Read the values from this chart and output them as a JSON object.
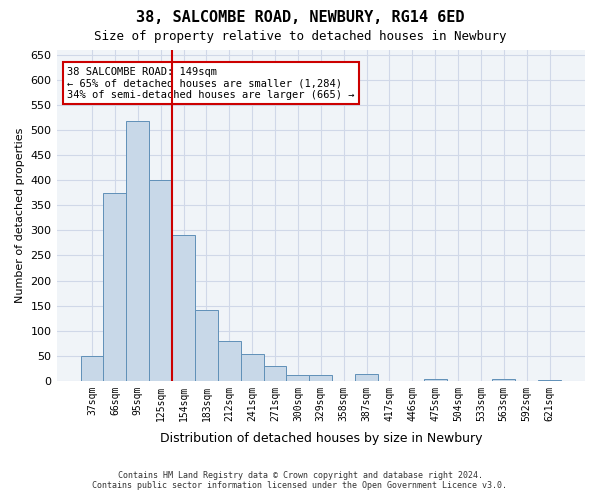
{
  "title1": "38, SALCOMBE ROAD, NEWBURY, RG14 6ED",
  "title2": "Size of property relative to detached houses in Newbury",
  "xlabel": "Distribution of detached houses by size in Newbury",
  "ylabel": "Number of detached properties",
  "categories": [
    "37sqm",
    "66sqm",
    "95sqm",
    "125sqm",
    "154sqm",
    "183sqm",
    "212sqm",
    "241sqm",
    "271sqm",
    "300sqm",
    "329sqm",
    "358sqm",
    "387sqm",
    "417sqm",
    "446sqm",
    "475sqm",
    "504sqm",
    "533sqm",
    "563sqm",
    "592sqm",
    "621sqm"
  ],
  "values": [
    50,
    375,
    519,
    401,
    291,
    142,
    80,
    54,
    29,
    11,
    11,
    0,
    13,
    0,
    0,
    3,
    0,
    0,
    3,
    0,
    2
  ],
  "bar_color": "#c8d8e8",
  "bar_edge_color": "#6090b8",
  "property_sqm": 149,
  "property_label": "38 SALCOMBE ROAD: 149sqm",
  "annotation_line1": "← 65% of detached houses are smaller (1,284)",
  "annotation_line2": "34% of semi-detached houses are larger (665) →",
  "vline_color": "#cc0000",
  "vline_x_index": 3.5,
  "box_color": "#cc0000",
  "grid_color": "#d0d8e8",
  "background_color": "#f0f4f8",
  "footnote1": "Contains HM Land Registry data © Crown copyright and database right 2024.",
  "footnote2": "Contains public sector information licensed under the Open Government Licence v3.0.",
  "ylim": [
    0,
    660
  ],
  "yticks": [
    0,
    50,
    100,
    150,
    200,
    250,
    300,
    350,
    400,
    450,
    500,
    550,
    600,
    650
  ]
}
